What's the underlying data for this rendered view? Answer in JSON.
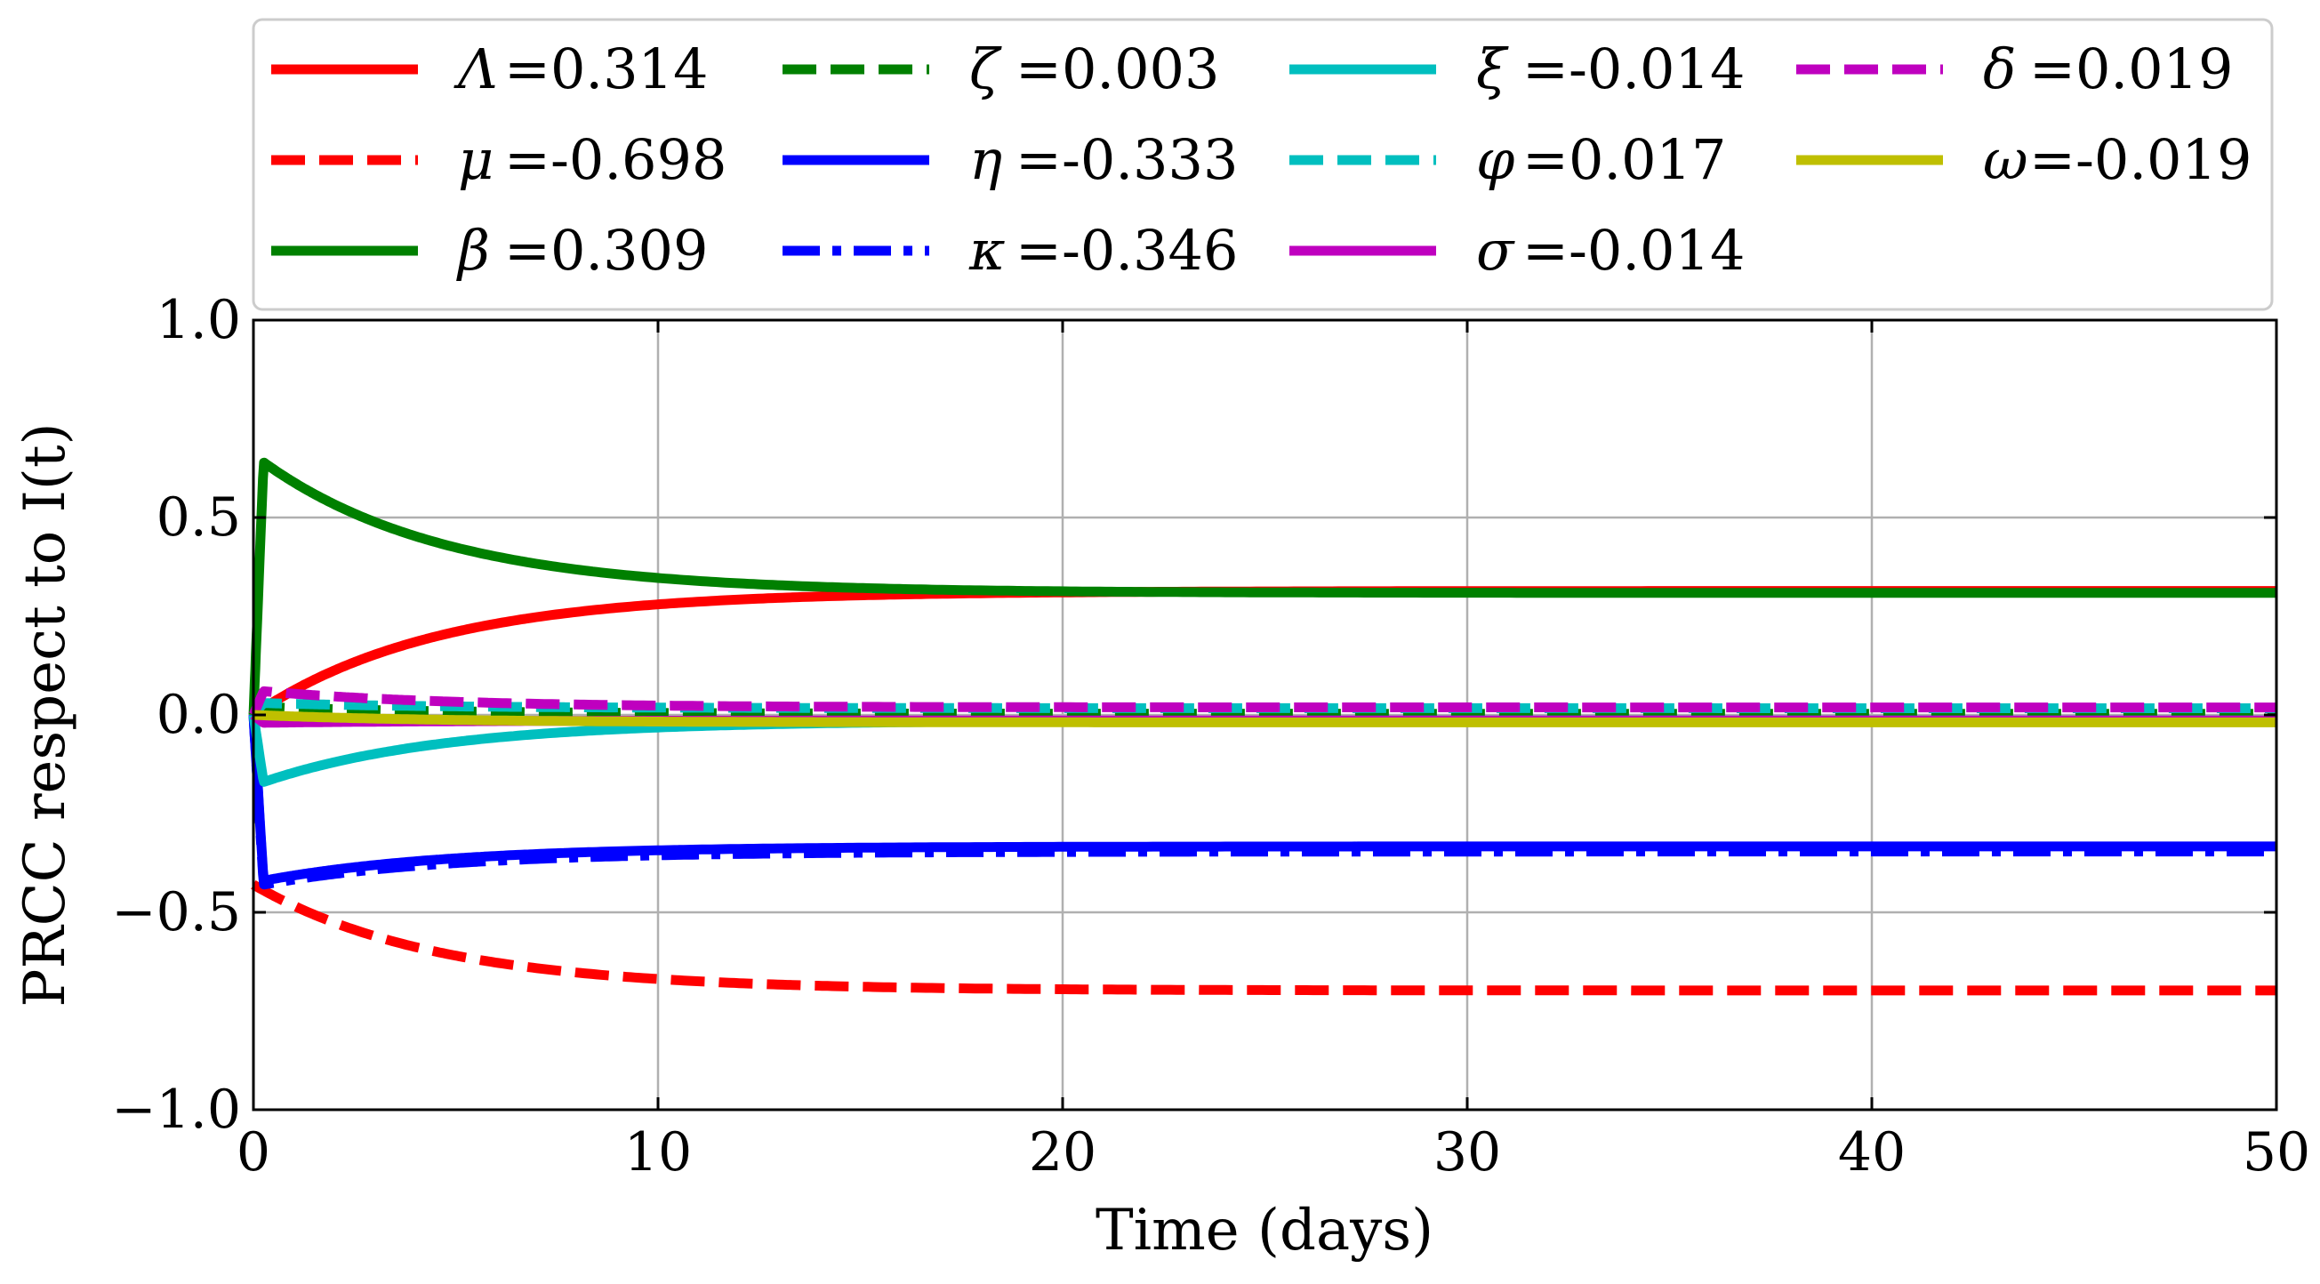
{
  "chart_data": {
    "type": "line",
    "xlabel": "Time (days)",
    "ylabel": "PRCC respect to I(t)",
    "xlim": [
      0,
      50
    ],
    "ylim": [
      -1.0,
      1.0
    ],
    "xticks": [
      0,
      10,
      20,
      30,
      40,
      50
    ],
    "xtick_labels": [
      "0",
      "10",
      "20",
      "30",
      "40",
      "50"
    ],
    "yticks": [
      -1.0,
      -0.5,
      0.0,
      0.5,
      1.0
    ],
    "ytick_labels": [
      "−1.0",
      "−0.5",
      "0.0",
      "0.5",
      "1.0"
    ],
    "grid": true,
    "legend_placement": "top",
    "series": [
      {
        "id": "lambda",
        "symbol": "Λ",
        "value_text": "=0.314",
        "color": "#ff0000",
        "dash": "solid",
        "start": 0.0,
        "peak": null,
        "final": 0.314
      },
      {
        "id": "mu",
        "symbol": "μ",
        "value_text": "=-0.698",
        "color": "#ff0000",
        "dash": "dashed",
        "start": -0.43,
        "peak": null,
        "final": -0.698
      },
      {
        "id": "beta",
        "symbol": "β",
        "value_text": "=0.309",
        "color": "#008000",
        "dash": "solid",
        "start": 0.0,
        "peak": 0.64,
        "final": 0.309
      },
      {
        "id": "zeta",
        "symbol": "ζ",
        "value_text": "=0.003",
        "color": "#008000",
        "dash": "dashed",
        "start": 0.0,
        "peak": 0.02,
        "final": 0.003
      },
      {
        "id": "eta",
        "symbol": "η",
        "value_text": "=-0.333",
        "color": "#0000ff",
        "dash": "solid",
        "start": 0.0,
        "peak": -0.42,
        "final": -0.333
      },
      {
        "id": "kappa",
        "symbol": "κ",
        "value_text": "=-0.346",
        "color": "#0000ff",
        "dash": "dashdot",
        "start": 0.0,
        "peak": -0.43,
        "final": -0.346
      },
      {
        "id": "xi",
        "symbol": "ξ",
        "value_text": "=-0.014",
        "color": "#00bfbf",
        "dash": "solid",
        "start": 0.0,
        "peak": -0.17,
        "final": -0.014
      },
      {
        "id": "varphi",
        "symbol": "φ",
        "value_text": "=0.017",
        "color": "#00bfbf",
        "dash": "dashed",
        "start": 0.0,
        "peak": 0.03,
        "final": 0.017
      },
      {
        "id": "sigma",
        "symbol": "σ",
        "value_text": "=-0.014",
        "color": "#bf00bf",
        "dash": "solid",
        "start": 0.0,
        "peak": -0.02,
        "final": -0.014
      },
      {
        "id": "delta",
        "symbol": "δ",
        "value_text": "=0.019",
        "color": "#bf00bf",
        "dash": "dashed",
        "start": 0.0,
        "peak": 0.06,
        "final": 0.019
      },
      {
        "id": "omega",
        "symbol": "ω",
        "value_text": "=-0.019",
        "color": "#bfbf00",
        "dash": "solid",
        "start": 0.0,
        "peak": null,
        "final": -0.019
      }
    ]
  }
}
